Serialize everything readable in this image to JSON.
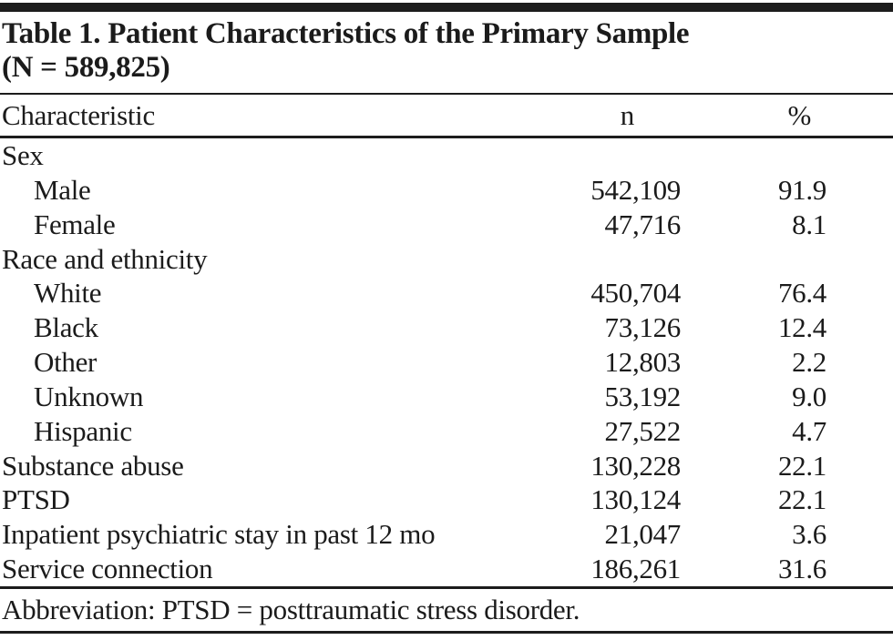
{
  "table": {
    "title_line1": "Table 1. Patient Characteristics of the Primary Sample",
    "title_line2": "(N = 589,825)",
    "columns": [
      "Characteristic",
      "n",
      "%"
    ],
    "rows": [
      {
        "label": "Sex",
        "indent": false,
        "n": "",
        "pct": ""
      },
      {
        "label": "Male",
        "indent": true,
        "n": "542,109",
        "pct": "91.9"
      },
      {
        "label": "Female",
        "indent": true,
        "n": "47,716",
        "pct": "8.1"
      },
      {
        "label": "Race and ethnicity",
        "indent": false,
        "n": "",
        "pct": ""
      },
      {
        "label": "White",
        "indent": true,
        "n": "450,704",
        "pct": "76.4"
      },
      {
        "label": "Black",
        "indent": true,
        "n": "73,126",
        "pct": "12.4"
      },
      {
        "label": "Other",
        "indent": true,
        "n": "12,803",
        "pct": "2.2"
      },
      {
        "label": "Unknown",
        "indent": true,
        "n": "53,192",
        "pct": "9.0"
      },
      {
        "label": "Hispanic",
        "indent": true,
        "n": "27,522",
        "pct": "4.7"
      },
      {
        "label": "Substance abuse",
        "indent": false,
        "n": "130,228",
        "pct": "22.1"
      },
      {
        "label": "PTSD",
        "indent": false,
        "n": "130,124",
        "pct": "22.1"
      },
      {
        "label": "Inpatient psychiatric stay in past 12 mo",
        "indent": false,
        "n": "21,047",
        "pct": "3.6"
      },
      {
        "label": "Service connection",
        "indent": false,
        "n": "186,261",
        "pct": "31.6"
      }
    ],
    "footnote": "Abbreviation: PTSD = posttraumatic stress disorder."
  },
  "colors": {
    "text": "#1b1b1b",
    "rule": "#1c1c1c",
    "background": "#ffffff"
  }
}
